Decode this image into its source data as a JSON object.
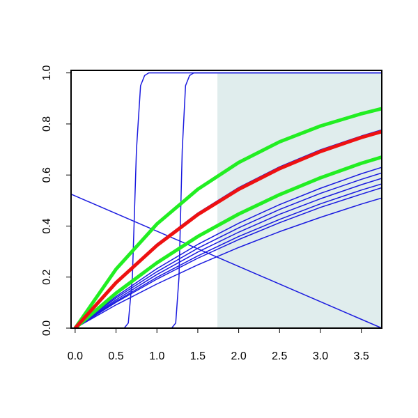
{
  "chart_data": {
    "type": "line",
    "xlim": [
      -0.05,
      3.75
    ],
    "ylim": [
      0,
      1.01
    ],
    "xticks": [
      {
        "value": 0,
        "label": "0.0"
      },
      {
        "value": 0.5,
        "label": "0.5"
      },
      {
        "value": 1,
        "label": "1.0"
      },
      {
        "value": 1.5,
        "label": "1.5"
      },
      {
        "value": 2,
        "label": "2.0"
      },
      {
        "value": 2.5,
        "label": "2.5"
      },
      {
        "value": 3,
        "label": "3.0"
      },
      {
        "value": 3.5,
        "label": "3.5"
      }
    ],
    "yticks": [
      {
        "value": 0,
        "label": "0.0"
      },
      {
        "value": 0.2,
        "label": "0.2"
      },
      {
        "value": 0.4,
        "label": "0.4"
      },
      {
        "value": 0.6,
        "label": "0.6"
      },
      {
        "value": 0.8,
        "label": "0.8"
      },
      {
        "value": 1,
        "label": "1.0"
      }
    ],
    "shaded_region": {
      "x": [
        1.74,
        3.75
      ],
      "color": "#e0eded"
    },
    "series": [
      {
        "color": "#1a1adf",
        "width": 1.5,
        "x": [
          0,
          0.5,
          1,
          1.5,
          2,
          2.5,
          3,
          3.5,
          3.75
        ],
        "values": [
          0,
          0.124,
          0.233,
          0.328,
          0.411,
          0.484,
          0.548,
          0.605,
          0.63
        ]
      },
      {
        "color": "#1a1adf",
        "width": 1.5,
        "x": [
          0,
          0.5,
          1,
          1.5,
          2,
          2.5,
          3,
          3.5,
          3.75
        ],
        "values": [
          0,
          0.118,
          0.221,
          0.313,
          0.393,
          0.465,
          0.528,
          0.583,
          0.608
        ]
      },
      {
        "color": "#1a1adf",
        "width": 1.5,
        "x": [
          0,
          0.5,
          1,
          1.5,
          2,
          2.5,
          3,
          3.5,
          3.75
        ],
        "values": [
          0,
          0.111,
          0.21,
          0.298,
          0.376,
          0.446,
          0.507,
          0.562,
          0.587
        ]
      },
      {
        "color": "#1a1adf",
        "width": 1.5,
        "x": [
          0,
          0.5,
          1,
          1.5,
          2,
          2.5,
          3,
          3.5,
          3.75
        ],
        "values": [
          0,
          0.105,
          0.199,
          0.283,
          0.359,
          0.426,
          0.487,
          0.541,
          0.565
        ]
      },
      {
        "color": "#1a1adf",
        "width": 1.5,
        "x": [
          0,
          0.5,
          1,
          1.5,
          2,
          2.5,
          3,
          3.5,
          3.75
        ],
        "values": [
          0,
          0.101,
          0.192,
          0.274,
          0.347,
          0.413,
          0.473,
          0.525,
          0.55
        ]
      },
      {
        "color": "#1a1adf",
        "width": 1.5,
        "x": [
          0,
          0.5,
          1,
          1.5,
          2,
          2.5,
          3,
          3.5,
          3.75
        ],
        "values": [
          0,
          0.091,
          0.173,
          0.248,
          0.316,
          0.378,
          0.434,
          0.486,
          0.51
        ]
      },
      {
        "color": "#1a1adf",
        "width": 1.5,
        "x": [
          0,
          0.5,
          1,
          1.5,
          2,
          2.5,
          3,
          3.5,
          3.75
        ],
        "values": [
          0,
          0.181,
          0.33,
          0.451,
          0.551,
          0.632,
          0.699,
          0.753,
          0.777
        ]
      },
      {
        "color": "#1a1adf",
        "width": 1.5,
        "x": [
          -0.05,
          0.6,
          0.65,
          0.7,
          0.75,
          0.8,
          0.85,
          0.9,
          3.75
        ],
        "values": [
          0,
          0,
          0.02,
          0.2,
          0.7,
          0.95,
          0.99,
          1,
          1
        ]
      },
      {
        "color": "#1a1adf",
        "width": 1.5,
        "x": [
          -0.05,
          1.18,
          1.23,
          1.27,
          1.31,
          1.35,
          1.4,
          1.45,
          3.75
        ],
        "values": [
          0,
          0,
          0.02,
          0.2,
          0.7,
          0.95,
          0.99,
          1,
          1
        ]
      },
      {
        "color": "#1a1adf",
        "width": 1.5,
        "x": [
          -0.05,
          3.75
        ],
        "values": [
          0.525,
          0
        ]
      },
      {
        "color": "#22ee22",
        "width": 5,
        "x": [
          0,
          0.5,
          1,
          1.5,
          2,
          2.5,
          3,
          3.5,
          3.75
        ],
        "values": [
          0,
          0.231,
          0.408,
          0.544,
          0.649,
          0.73,
          0.792,
          0.84,
          0.86
        ]
      },
      {
        "color": "#22ee22",
        "width": 5,
        "x": [
          0,
          0.5,
          1,
          1.5,
          2,
          2.5,
          3,
          3.5,
          3.75
        ],
        "values": [
          0,
          0.137,
          0.256,
          0.359,
          0.447,
          0.523,
          0.589,
          0.646,
          0.67
        ]
      },
      {
        "color": "#ee1111",
        "width": 5,
        "x": [
          0,
          0.5,
          1,
          1.5,
          2,
          2.5,
          3,
          3.5,
          3.75
        ],
        "values": [
          0,
          0.178,
          0.324,
          0.445,
          0.544,
          0.625,
          0.692,
          0.747,
          0.77
        ]
      }
    ]
  }
}
